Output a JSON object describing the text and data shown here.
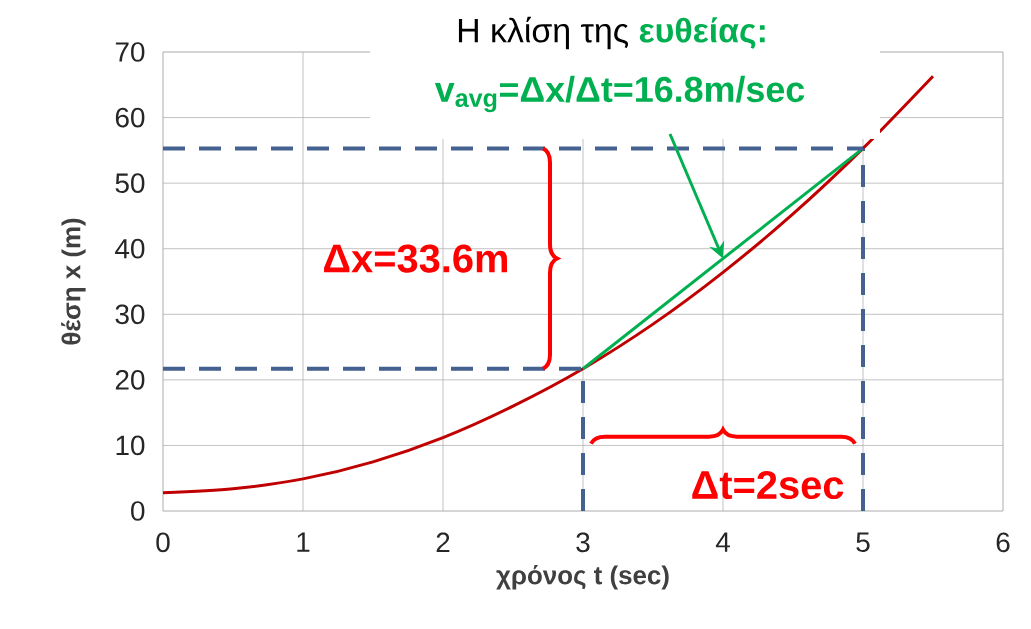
{
  "chart_data": {
    "type": "line",
    "title": "Η κλίση της **ευθείας:**",
    "subtitle": "v$_{avg}$=Δx/Δt=16.8m/sec",
    "xlabel": "χρόνος t (sec)",
    "ylabel": "θέση x (m)",
    "annotations": [
      "Δx=33.6m",
      "Δt=2sec"
    ],
    "xlim": [
      0,
      6
    ],
    "xticks": [
      0,
      1,
      2,
      3,
      4,
      5,
      6
    ],
    "ylim": [
      0,
      70
    ],
    "yticks": [
      0,
      10,
      20,
      30,
      40,
      50,
      60,
      70
    ],
    "grid": true,
    "marker": "none",
    "series": [
      {
        "color": "#c00000",
        "x": [
          0,
          0.5,
          1,
          1.5,
          2,
          2.5,
          3,
          3.5,
          4,
          4.5,
          5,
          5.5
        ],
        "values": [
          2.8,
          3.4,
          4.9,
          7.5,
          11.2,
          16.0,
          21.7,
          28.5,
          36.4,
          45.3,
          55.3,
          66.3
        ]
      },
      {
        "color": "#00b050",
        "x": [
          3,
          5
        ],
        "values": [
          21.7,
          55.3
        ]
      },
      {
        "color": "#44618f",
        "line_style": "dashed",
        "x": [
          0,
          5
        ],
        "values": [
          55.3,
          55.3
        ]
      },
      {
        "color": "#44618f",
        "line_style": "dashed",
        "x": [
          0,
          3
        ],
        "values": [
          21.7,
          21.7
        ]
      },
      {
        "color": "#44618f",
        "line_style": "dashed",
        "x": [
          3,
          3
        ],
        "values": [
          0,
          21.7
        ]
      },
      {
        "color": "#44618f",
        "line_style": "dashed",
        "x": [
          5,
          5
        ],
        "values": [
          0,
          55.3
        ]
      }
    ]
  }
}
